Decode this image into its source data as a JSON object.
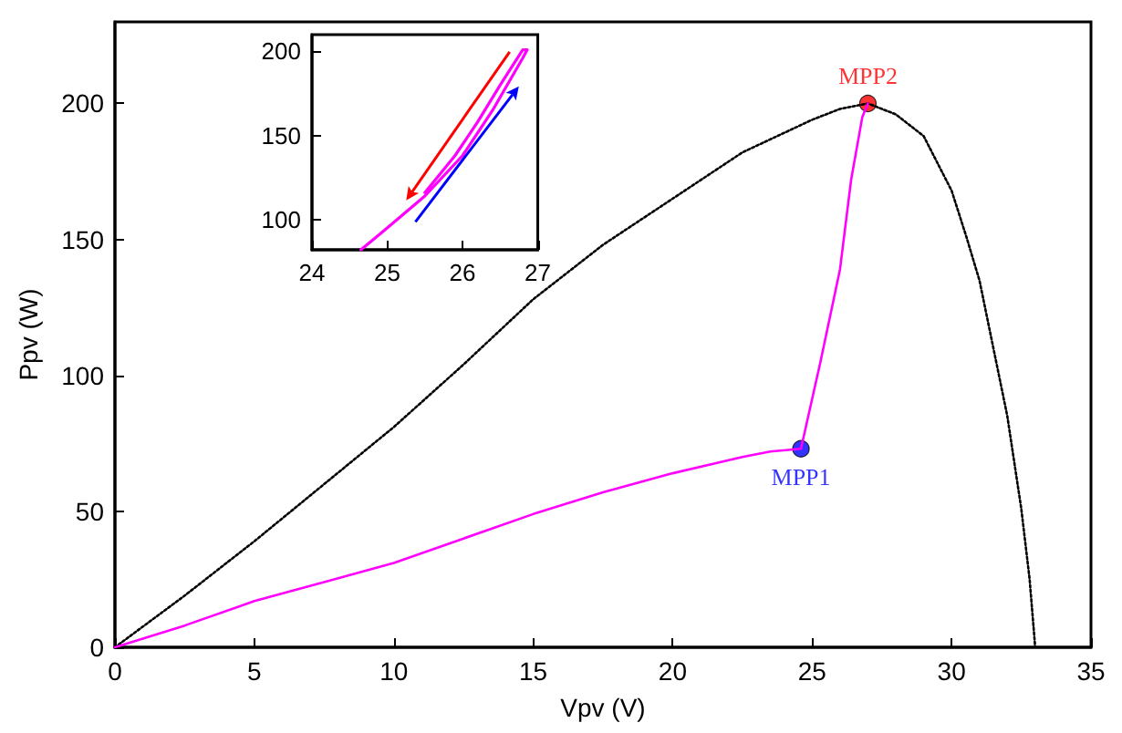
{
  "chart_data": [
    {
      "type": "line",
      "xlabel": "Vpv (V)",
      "ylabel": "Ppv (W)",
      "xlim": [
        0,
        35
      ],
      "ylim": [
        0,
        230
      ],
      "xticks": [
        0,
        5,
        10,
        15,
        20,
        25,
        30,
        35
      ],
      "yticks": [
        0,
        50,
        100,
        150,
        200
      ],
      "grid": false,
      "legend": false,
      "series": [
        {
          "color": "#000000",
          "line_style": "dotted",
          "marker": "none",
          "x": [
            0,
            2.5,
            5,
            7.5,
            10,
            12.5,
            15,
            17.5,
            20,
            22.5,
            25,
            26,
            27,
            28,
            29,
            30,
            30.5,
            31,
            31.5,
            32,
            32.5,
            32.8,
            33
          ],
          "values": [
            0,
            19,
            39,
            60,
            81,
            104,
            128,
            148,
            165,
            182,
            194,
            198,
            200,
            196,
            188,
            168,
            152,
            135,
            110,
            85,
            51,
            25,
            0
          ]
        },
        {
          "color": "#ff00ff",
          "line_style": "solid",
          "marker": "none",
          "x": [
            0,
            2.5,
            5,
            7.5,
            10,
            12.5,
            15,
            17.5,
            20,
            22.5,
            23.5,
            24.6,
            25.3,
            26,
            26.4,
            26.8,
            27
          ],
          "values": [
            0,
            8,
            17,
            24,
            31,
            40,
            49,
            57,
            64,
            70,
            72,
            73,
            105,
            139,
            172,
            195,
            200
          ]
        },
        {
          "type": "scatter",
          "name": "MPP1",
          "color": "#0000ff",
          "marker": "circle",
          "x": [
            24.6
          ],
          "values": [
            73
          ]
        },
        {
          "type": "scatter",
          "name": "MPP2",
          "color": "#ff0000",
          "marker": "circle",
          "x": [
            27
          ],
          "values": [
            200
          ]
        }
      ]
    },
    {
      "type": "line",
      "xlim": [
        24,
        27
      ],
      "ylim": [
        82,
        210
      ],
      "xticks": [
        24,
        25,
        26,
        27
      ],
      "yticks": [
        100,
        150,
        200
      ],
      "grid": false,
      "legend": false,
      "series": [
        {
          "color": "#ff00ff",
          "line_style": "solid",
          "marker": "none",
          "x": [
            24.65,
            25,
            25.5,
            26,
            26.4,
            26.8,
            26.86,
            26.8,
            26.5,
            26.2,
            25.9,
            25.5
          ],
          "values": [
            82,
            95,
            114,
            138,
            165,
            196,
            201,
            201,
            180,
            158,
            138,
            116
          ]
        }
      ]
    }
  ]
}
